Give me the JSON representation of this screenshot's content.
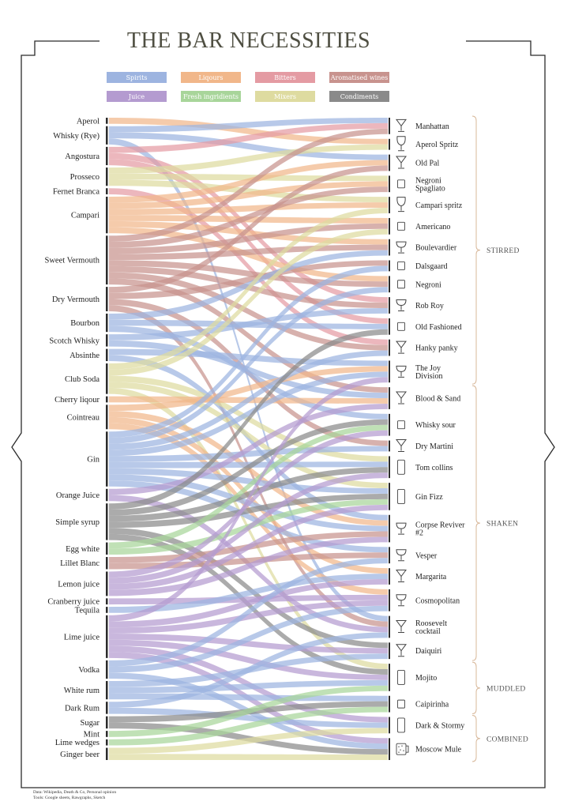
{
  "title": "THE BAR NECESSITIES",
  "footer": {
    "line1": "Data: Wikipedia, Death & Co, Personal opinion",
    "line2": "Tools: Google sheets, Rawgraphs, Sketch"
  },
  "legend": [
    {
      "label": "Spirits",
      "key": "spirits",
      "color": "#9db4e0"
    },
    {
      "label": "Liqours",
      "key": "liqueurs",
      "color": "#f1b78a"
    },
    {
      "label": "Bitters",
      "key": "bitters",
      "color": "#e49ba3"
    },
    {
      "label": "Aromatised wines",
      "key": "wines",
      "color": "#c8938e"
    },
    {
      "label": "Juice",
      "key": "juice",
      "color": "#b49bd0"
    },
    {
      "label": "Fresh ingridients",
      "key": "fresh",
      "color": "#a8d59a"
    },
    {
      "label": "Mixers",
      "key": "mixers",
      "color": "#dedba0"
    },
    {
      "label": "Condiments",
      "key": "condiments",
      "color": "#8a8a8a"
    }
  ],
  "chart_data": {
    "type": "sankey",
    "ingredients": [
      {
        "name": "Aperol",
        "category": "liqueurs"
      },
      {
        "name": "Whisky (Rye)",
        "category": "spirits"
      },
      {
        "name": "Angostura",
        "category": "bitters"
      },
      {
        "name": "Prosseco",
        "category": "mixers"
      },
      {
        "name": "Fernet Branca",
        "category": "bitters"
      },
      {
        "name": "Campari",
        "category": "liqueurs"
      },
      {
        "name": "Sweet Vermouth",
        "category": "wines"
      },
      {
        "name": "Dry Vermouth",
        "category": "wines"
      },
      {
        "name": "Bourbon",
        "category": "spirits"
      },
      {
        "name": "Scotch Whisky",
        "category": "spirits"
      },
      {
        "name": "Absinthe",
        "category": "spirits"
      },
      {
        "name": "Club Soda",
        "category": "mixers"
      },
      {
        "name": "Cherry liqour",
        "category": "liqueurs"
      },
      {
        "name": "Cointreau",
        "category": "liqueurs"
      },
      {
        "name": "Gin",
        "category": "spirits"
      },
      {
        "name": "Orange Juice",
        "category": "juice"
      },
      {
        "name": "Simple syrup",
        "category": "condiments"
      },
      {
        "name": "Egg white",
        "category": "fresh"
      },
      {
        "name": "Lillet Blanc",
        "category": "wines"
      },
      {
        "name": "Lemon juice",
        "category": "juice"
      },
      {
        "name": "Cranberry juice",
        "category": "juice"
      },
      {
        "name": "Tequila",
        "category": "spirits"
      },
      {
        "name": "Lime juice",
        "category": "juice"
      },
      {
        "name": "Vodka",
        "category": "spirits"
      },
      {
        "name": "White rum",
        "category": "spirits"
      },
      {
        "name": "Dark Rum",
        "category": "spirits"
      },
      {
        "name": "Sugar",
        "category": "condiments"
      },
      {
        "name": "Mint",
        "category": "fresh"
      },
      {
        "name": "Lime wedges",
        "category": "fresh"
      },
      {
        "name": "Ginger beer",
        "category": "mixers"
      }
    ],
    "cocktails": [
      {
        "name": "Manhattan",
        "glass": "martini",
        "method": "STIRRED"
      },
      {
        "name": "Aperol Spritz",
        "glass": "wine",
        "method": "STIRRED"
      },
      {
        "name": "Old Pal",
        "glass": "martini",
        "method": "STIRRED"
      },
      {
        "name": "Negroni Spagliato",
        "glass": "rocks",
        "method": "STIRRED"
      },
      {
        "name": "Campari spritz",
        "glass": "wine",
        "method": "STIRRED"
      },
      {
        "name": "Americano",
        "glass": "rocks",
        "method": "STIRRED"
      },
      {
        "name": "Boulevardier",
        "glass": "coupe",
        "method": "STIRRED"
      },
      {
        "name": "Dalsgaard",
        "glass": "rocks",
        "method": "STIRRED"
      },
      {
        "name": "Negroni",
        "glass": "rocks",
        "method": "STIRRED"
      },
      {
        "name": "Rob Roy",
        "glass": "coupe",
        "method": "STIRRED"
      },
      {
        "name": "Old Fashioned",
        "glass": "rocks",
        "method": "STIRRED"
      },
      {
        "name": "Hanky panky",
        "glass": "martini",
        "method": "STIRRED"
      },
      {
        "name": "The Joy Division",
        "glass": "coupe",
        "method": "STIRRED"
      },
      {
        "name": "Blood & Sand",
        "glass": "martini",
        "method": "SHAKEN"
      },
      {
        "name": "Whisky sour",
        "glass": "rocks",
        "method": "SHAKEN"
      },
      {
        "name": "Dry Martini",
        "glass": "martini",
        "method": "SHAKEN"
      },
      {
        "name": "Tom collins",
        "glass": "highball",
        "method": "SHAKEN"
      },
      {
        "name": "Gin Fizz",
        "glass": "highball",
        "method": "SHAKEN"
      },
      {
        "name": "Corpse Reviver #2",
        "glass": "coupe",
        "method": "SHAKEN"
      },
      {
        "name": "Vesper",
        "glass": "coupe",
        "method": "SHAKEN"
      },
      {
        "name": "Margarita",
        "glass": "martini",
        "method": "SHAKEN"
      },
      {
        "name": "Cosmopolitan",
        "glass": "coupe",
        "method": "SHAKEN"
      },
      {
        "name": "Roosevelt cocktail",
        "glass": "martini",
        "method": "SHAKEN"
      },
      {
        "name": "Daiquiri",
        "glass": "martini",
        "method": "SHAKEN"
      },
      {
        "name": "Mojito",
        "glass": "highball",
        "method": "MUDDLED"
      },
      {
        "name": "Caipirinha",
        "glass": "rocks",
        "method": "MUDDLED"
      },
      {
        "name": "Dark & Stormy",
        "glass": "highball",
        "method": "COMBINED"
      },
      {
        "name": "Moscow Mule",
        "glass": "mug",
        "method": "COMBINED"
      }
    ],
    "methods": [
      "STIRRED",
      "SHAKEN",
      "MUDDLED",
      "COMBINED"
    ],
    "flows": [
      [
        "Aperol",
        "Aperol Spritz"
      ],
      [
        "Whisky (Rye)",
        "Manhattan"
      ],
      [
        "Whisky (Rye)",
        "Old Pal"
      ],
      [
        "Whisky (Rye)",
        "Roosevelt cocktail"
      ],
      [
        "Angostura",
        "Manhattan"
      ],
      [
        "Angostura",
        "Rob Roy"
      ],
      [
        "Angostura",
        "Old Fashioned"
      ],
      [
        "Prosseco",
        "Aperol Spritz"
      ],
      [
        "Prosseco",
        "Negroni Spagliato"
      ],
      [
        "Prosseco",
        "Campari spritz"
      ],
      [
        "Fernet Branca",
        "Hanky panky"
      ],
      [
        "Campari",
        "Old Pal"
      ],
      [
        "Campari",
        "Negroni Spagliato"
      ],
      [
        "Campari",
        "Campari spritz"
      ],
      [
        "Campari",
        "Americano"
      ],
      [
        "Campari",
        "Boulevardier"
      ],
      [
        "Campari",
        "Negroni"
      ],
      [
        "Sweet Vermouth",
        "Manhattan"
      ],
      [
        "Sweet Vermouth",
        "Negroni Spagliato"
      ],
      [
        "Sweet Vermouth",
        "Americano"
      ],
      [
        "Sweet Vermouth",
        "Boulevardier"
      ],
      [
        "Sweet Vermouth",
        "Negroni"
      ],
      [
        "Sweet Vermouth",
        "Rob Roy"
      ],
      [
        "Sweet Vermouth",
        "Hanky panky"
      ],
      [
        "Sweet Vermouth",
        "Blood & Sand"
      ],
      [
        "Dry Vermouth",
        "Old Pal"
      ],
      [
        "Dry Vermouth",
        "Dalsgaard"
      ],
      [
        "Dry Vermouth",
        "Dry Martini"
      ],
      [
        "Dry Vermouth",
        "Roosevelt cocktail"
      ],
      [
        "Bourbon",
        "Boulevardier"
      ],
      [
        "Bourbon",
        "Old Fashioned"
      ],
      [
        "Bourbon",
        "Whisky sour"
      ],
      [
        "Scotch Whisky",
        "Rob Roy"
      ],
      [
        "Scotch Whisky",
        "Blood & Sand"
      ],
      [
        "Absinthe",
        "The Joy Division"
      ],
      [
        "Absinthe",
        "Corpse Reviver #2"
      ],
      [
        "Club Soda",
        "Campari spritz"
      ],
      [
        "Club Soda",
        "Americano"
      ],
      [
        "Club Soda",
        "Tom collins"
      ],
      [
        "Club Soda",
        "Gin Fizz"
      ],
      [
        "Club Soda",
        "Mojito"
      ],
      [
        "Cherry liqour",
        "Blood & Sand"
      ],
      [
        "Cointreau",
        "The Joy Division"
      ],
      [
        "Cointreau",
        "Corpse Reviver #2"
      ],
      [
        "Cointreau",
        "Margarita"
      ],
      [
        "Cointreau",
        "Cosmopolitan"
      ],
      [
        "Gin",
        "Dalsgaard"
      ],
      [
        "Gin",
        "Negroni"
      ],
      [
        "Gin",
        "Hanky panky"
      ],
      [
        "Gin",
        "The Joy Division"
      ],
      [
        "Gin",
        "Dry Martini"
      ],
      [
        "Gin",
        "Tom collins"
      ],
      [
        "Gin",
        "Gin Fizz"
      ],
      [
        "Gin",
        "Corpse Reviver #2"
      ],
      [
        "Gin",
        "Vesper"
      ],
      [
        "Orange Juice",
        "Blood & Sand"
      ],
      [
        "Orange Juice",
        "Roosevelt cocktail"
      ],
      [
        "Simple syrup",
        "Old Fashioned"
      ],
      [
        "Simple syrup",
        "Whisky sour"
      ],
      [
        "Simple syrup",
        "Tom collins"
      ],
      [
        "Simple syrup",
        "Gin Fizz"
      ],
      [
        "Simple syrup",
        "Daiquiri"
      ],
      [
        "Simple syrup",
        "Mojito"
      ],
      [
        "Egg white",
        "Whisky sour"
      ],
      [
        "Egg white",
        "Gin Fizz"
      ],
      [
        "Lillet Blanc",
        "Corpse Reviver #2"
      ],
      [
        "Lillet Blanc",
        "Vesper"
      ],
      [
        "Lemon juice",
        "Whisky sour"
      ],
      [
        "Lemon juice",
        "Tom collins"
      ],
      [
        "Lemon juice",
        "Gin Fizz"
      ],
      [
        "Lemon juice",
        "Corpse Reviver #2"
      ],
      [
        "Cranberry juice",
        "Cosmopolitan"
      ],
      [
        "Tequila",
        "Margarita"
      ],
      [
        "Lime juice",
        "The Joy Division"
      ],
      [
        "Lime juice",
        "Margarita"
      ],
      [
        "Lime juice",
        "Cosmopolitan"
      ],
      [
        "Lime juice",
        "Daiquiri"
      ],
      [
        "Lime juice",
        "Mojito"
      ],
      [
        "Lime juice",
        "Dark & Stormy"
      ],
      [
        "Lime juice",
        "Moscow Mule"
      ],
      [
        "Vodka",
        "Vesper"
      ],
      [
        "Vodka",
        "Cosmopolitan"
      ],
      [
        "Vodka",
        "Moscow Mule"
      ],
      [
        "White rum",
        "Daiquiri"
      ],
      [
        "White rum",
        "Mojito"
      ],
      [
        "White rum",
        "Caipirinha"
      ],
      [
        "Dark Rum",
        "Roosevelt cocktail"
      ],
      [
        "Dark Rum",
        "Dark & Stormy"
      ],
      [
        "Sugar",
        "Caipirinha"
      ],
      [
        "Sugar",
        "Moscow Mule"
      ],
      [
        "Mint",
        "Mojito"
      ],
      [
        "Lime wedges",
        "Caipirinha"
      ],
      [
        "Ginger beer",
        "Dark & Stormy"
      ],
      [
        "Ginger beer",
        "Moscow Mule"
      ]
    ]
  }
}
